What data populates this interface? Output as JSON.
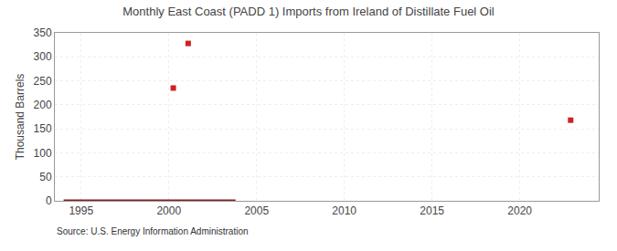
{
  "chart_data": {
    "type": "scatter",
    "title": "Monthly East Coast (PADD 1) Imports from Ireland of Distillate Fuel Oil",
    "ylabel": "Thousand Barrels",
    "annotations": [
      "Source: U.S. Energy Information Administration"
    ],
    "series": [
      {
        "type": "line",
        "color": "#8b1a1a",
        "line_style": "solid",
        "x": [
          1994.0,
          2003.8
        ],
        "values": [
          0,
          0
        ]
      },
      {
        "type": "scatter",
        "color": "#cc2222",
        "marker": "square",
        "x": [
          2000.25,
          2001.1,
          2022.9
        ],
        "values": [
          235,
          328,
          168
        ]
      }
    ],
    "xlim": [
      1993.5,
      2024.5
    ],
    "xticks": [
      1995,
      2000,
      2005,
      2010,
      2015,
      2020
    ],
    "ylim": [
      0,
      350
    ],
    "yticks": [
      0,
      50,
      100,
      150,
      200,
      250,
      300,
      350
    ],
    "grid": true
  }
}
